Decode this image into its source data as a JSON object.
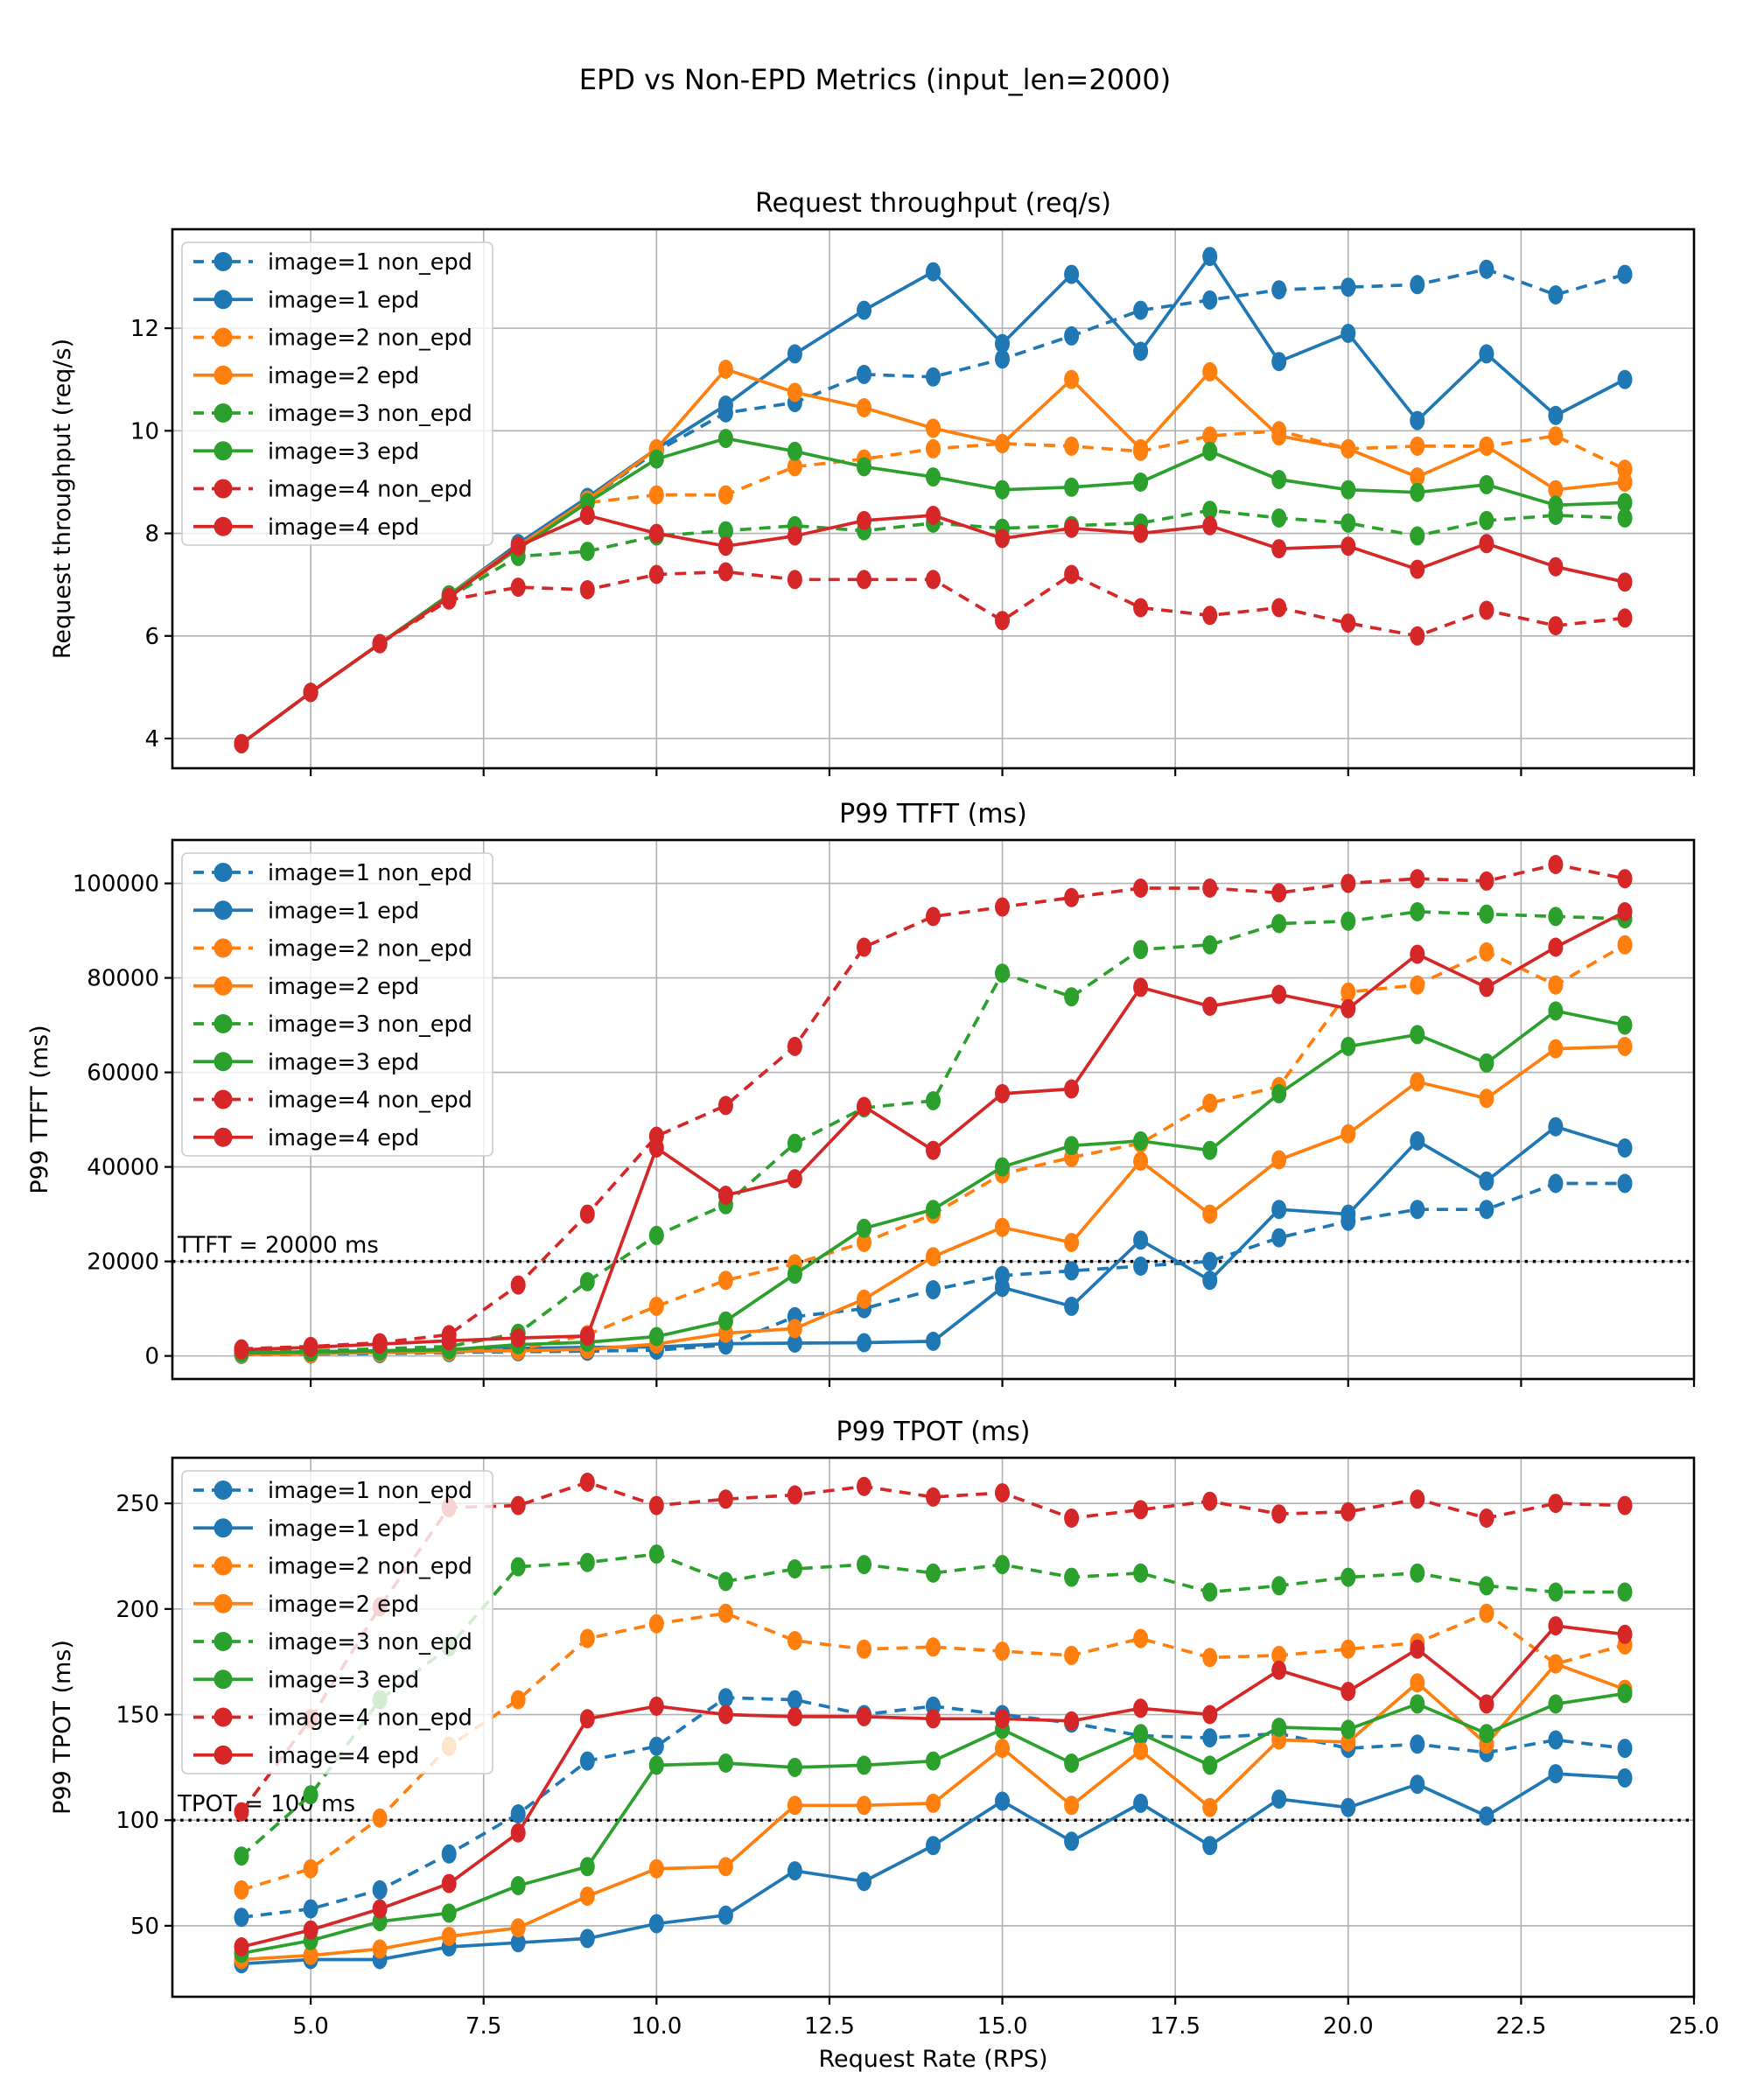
{
  "title": "EPD vs Non-EPD Metrics (input_len=2000)",
  "xlabel": "Request Rate (RPS)",
  "x_tick_labels": [
    "5.0",
    "7.5",
    "10.0",
    "12.5",
    "15.0",
    "17.5",
    "20.0",
    "22.5",
    "25.0"
  ],
  "legend_labels": [
    "image=1 non_epd",
    "image=1 epd",
    "image=2 non_epd",
    "image=2 epd",
    "image=3 non_epd",
    "image=3 epd",
    "image=4 non_epd",
    "image=4 epd"
  ],
  "colors": {
    "blue": "#1f77b4",
    "orange": "#ff7f0e",
    "green": "#2ca02c",
    "red": "#d62728",
    "grid": "#b0b0b0",
    "spine": "#000000",
    "threshold": "#000000"
  },
  "chart_data": [
    {
      "type": "line",
      "title": "Request throughput (req/s)",
      "ylabel": "Request throughput (req/s)",
      "x": [
        4,
        5,
        6,
        7,
        8,
        9,
        10,
        11,
        12,
        13,
        14,
        15,
        16,
        17,
        18,
        19,
        20,
        21,
        22,
        23,
        24
      ],
      "xlim": [
        3,
        25
      ],
      "ylim": [
        3.42,
        13.93
      ],
      "yticks": [
        4,
        6,
        8,
        10,
        12
      ],
      "ytick_labels": [
        "4",
        "6",
        "8",
        "10",
        "12"
      ],
      "grid": true,
      "legend_position": "upper-left",
      "series": [
        {
          "name": "image=1 non_epd",
          "color": "blue",
          "style": "dashed",
          "values": [
            3.9,
            4.9,
            5.85,
            6.8,
            7.75,
            8.65,
            9.6,
            10.35,
            10.55,
            11.1,
            11.05,
            11.4,
            11.85,
            12.35,
            12.55,
            12.75,
            12.8,
            12.85,
            13.15,
            12.65,
            13.05
          ]
        },
        {
          "name": "image=1 epd",
          "color": "blue",
          "style": "solid",
          "values": [
            3.9,
            4.9,
            5.85,
            6.8,
            7.8,
            8.7,
            9.65,
            10.5,
            11.5,
            12.35,
            13.1,
            11.7,
            13.05,
            11.55,
            13.4,
            11.35,
            11.9,
            10.2,
            11.5,
            10.3,
            11.0
          ]
        },
        {
          "name": "image=2 non_epd",
          "color": "orange",
          "style": "dashed",
          "values": [
            3.9,
            4.9,
            5.85,
            6.75,
            7.7,
            8.6,
            8.75,
            8.75,
            9.3,
            9.45,
            9.65,
            9.75,
            9.7,
            9.6,
            9.9,
            10.0,
            9.65,
            9.7,
            9.7,
            9.9,
            9.25
          ]
        },
        {
          "name": "image=2 epd",
          "color": "orange",
          "style": "solid",
          "values": [
            3.9,
            4.9,
            5.85,
            6.8,
            7.75,
            8.65,
            9.65,
            11.2,
            10.75,
            10.45,
            10.05,
            9.75,
            11.0,
            9.65,
            11.15,
            9.9,
            9.65,
            9.1,
            9.7,
            8.85,
            9.0
          ]
        },
        {
          "name": "image=3 non_epd",
          "color": "green",
          "style": "dashed",
          "values": [
            3.9,
            4.9,
            5.85,
            6.75,
            7.55,
            7.65,
            7.95,
            8.05,
            8.15,
            8.05,
            8.2,
            8.1,
            8.15,
            8.2,
            8.45,
            8.3,
            8.2,
            7.95,
            8.25,
            8.35,
            8.3
          ]
        },
        {
          "name": "image=3 epd",
          "color": "green",
          "style": "solid",
          "values": [
            3.9,
            4.9,
            5.85,
            6.8,
            7.7,
            8.6,
            9.45,
            9.85,
            9.6,
            9.3,
            9.1,
            8.85,
            8.9,
            9.0,
            9.6,
            9.05,
            8.85,
            8.8,
            8.95,
            8.55,
            8.6
          ]
        },
        {
          "name": "image=4 non_epd",
          "color": "red",
          "style": "dashed",
          "values": [
            3.9,
            4.9,
            5.85,
            6.7,
            6.95,
            6.9,
            7.2,
            7.25,
            7.1,
            7.1,
            7.1,
            6.3,
            7.2,
            6.55,
            6.4,
            6.55,
            6.25,
            6.0,
            6.5,
            6.2,
            6.35
          ]
        },
        {
          "name": "image=4 epd",
          "color": "red",
          "style": "solid",
          "values": [
            3.9,
            4.9,
            5.85,
            6.75,
            7.75,
            8.35,
            8.0,
            7.75,
            7.95,
            8.25,
            8.35,
            7.9,
            8.1,
            8.0,
            8.15,
            7.7,
            7.75,
            7.3,
            7.8,
            7.35,
            7.05
          ]
        }
      ]
    },
    {
      "type": "line",
      "title": "P99 TTFT (ms)",
      "ylabel": "P99 TTFT (ms)",
      "x": [
        4,
        5,
        6,
        7,
        8,
        9,
        10,
        11,
        12,
        13,
        14,
        15,
        16,
        17,
        18,
        19,
        20,
        21,
        22,
        23,
        24
      ],
      "xlim": [
        3,
        25
      ],
      "ylim": [
        -4885,
        109185
      ],
      "yticks": [
        0,
        20000,
        40000,
        60000,
        80000,
        100000
      ],
      "ytick_labels": [
        "0",
        "20000",
        "40000",
        "60000",
        "80000",
        "100000"
      ],
      "grid": true,
      "legend_position": "upper-left",
      "threshold": {
        "value": 20000,
        "label": "TTFT = 20000 ms"
      },
      "series": [
        {
          "name": "image=1 non_epd",
          "color": "blue",
          "style": "dashed",
          "values": [
            300,
            400,
            500,
            700,
            900,
            1000,
            1200,
            2300,
            8300,
            10000,
            14000,
            17000,
            18000,
            19000,
            20000,
            25000,
            28500,
            31000,
            31000,
            36500,
            36500
          ]
        },
        {
          "name": "image=1 epd",
          "color": "blue",
          "style": "solid",
          "values": [
            700,
            900,
            1100,
            1400,
            1600,
            1800,
            1900,
            2600,
            2700,
            2800,
            3100,
            14500,
            10500,
            24500,
            16000,
            31000,
            30000,
            45500,
            37000,
            48500,
            44000
          ]
        },
        {
          "name": "image=2 non_epd",
          "color": "orange",
          "style": "dashed",
          "values": [
            500,
            700,
            900,
            1100,
            1300,
            4500,
            10500,
            16000,
            19500,
            24000,
            30000,
            38500,
            42000,
            45000,
            53500,
            57000,
            77000,
            78500,
            85500,
            78500,
            87000
          ]
        },
        {
          "name": "image=2 epd",
          "color": "orange",
          "style": "solid",
          "values": [
            400,
            500,
            700,
            900,
            1100,
            1400,
            2500,
            4800,
            5800,
            12000,
            21000,
            27200,
            24000,
            41200,
            30000,
            41500,
            47000,
            58000,
            54500,
            65000,
            65500
          ]
        },
        {
          "name": "image=3 non_epd",
          "color": "green",
          "style": "dashed",
          "values": [
            800,
            1100,
            1500,
            2000,
            4800,
            15700,
            25500,
            32000,
            45000,
            52500,
            54000,
            81000,
            76000,
            86000,
            87000,
            91500,
            92000,
            94000,
            93500,
            93000,
            92500
          ]
        },
        {
          "name": "image=3 epd",
          "color": "green",
          "style": "solid",
          "values": [
            600,
            800,
            1000,
            1300,
            2400,
            2900,
            4100,
            7400,
            17300,
            27000,
            31000,
            40000,
            44500,
            45500,
            43500,
            55500,
            65500,
            68000,
            62000,
            73000,
            70000
          ]
        },
        {
          "name": "image=4 non_epd",
          "color": "red",
          "style": "dashed",
          "values": [
            1500,
            2000,
            2800,
            4500,
            15000,
            30000,
            46500,
            53000,
            65500,
            86500,
            93000,
            95000,
            97000,
            99000,
            99000,
            98000,
            100000,
            101000,
            100500,
            104000,
            101000
          ]
        },
        {
          "name": "image=4 epd",
          "color": "red",
          "style": "solid",
          "values": [
            1300,
            1800,
            2500,
            3200,
            3800,
            4200,
            44000,
            34000,
            37500,
            52800,
            43500,
            55500,
            56500,
            78000,
            74000,
            76500,
            73500,
            85000,
            78000,
            86500,
            94000
          ]
        }
      ]
    },
    {
      "type": "line",
      "title": "P99 TPOT (ms)",
      "ylabel": "P99 TPOT (ms)",
      "x": [
        4,
        5,
        6,
        7,
        8,
        9,
        10,
        11,
        12,
        13,
        14,
        15,
        16,
        17,
        18,
        19,
        20,
        21,
        22,
        23,
        24
      ],
      "xlim": [
        3,
        25
      ],
      "ylim": [
        16.4,
        271.6
      ],
      "yticks": [
        50,
        100,
        150,
        200,
        250
      ],
      "ytick_labels": [
        "50",
        "100",
        "150",
        "200",
        "250"
      ],
      "grid": true,
      "legend_position": "upper-left",
      "threshold": {
        "value": 100,
        "label": "TPOT = 100 ms"
      },
      "series": [
        {
          "name": "image=1 non_epd",
          "color": "blue",
          "style": "dashed",
          "values": [
            54,
            58,
            67,
            84,
            103,
            128,
            135,
            158,
            157,
            150,
            154,
            150,
            146,
            140,
            139,
            141,
            134,
            136,
            132,
            138,
            134
          ]
        },
        {
          "name": "image=1 epd",
          "color": "blue",
          "style": "solid",
          "values": [
            32,
            34,
            34,
            40,
            42,
            44,
            51,
            55,
            76,
            71,
            88,
            109,
            90,
            108,
            88,
            110,
            106,
            117,
            102,
            122,
            120
          ]
        },
        {
          "name": "image=2 non_epd",
          "color": "orange",
          "style": "dashed",
          "values": [
            67,
            77,
            101,
            135,
            157,
            186,
            193,
            198,
            185,
            181,
            182,
            180,
            178,
            186,
            177,
            178,
            181,
            184,
            198,
            174,
            183
          ]
        },
        {
          "name": "image=2 epd",
          "color": "orange",
          "style": "solid",
          "values": [
            34,
            36,
            39,
            45,
            49,
            64,
            77,
            78,
            107,
            107,
            108,
            134,
            107,
            133,
            106,
            138,
            137,
            165,
            136,
            174,
            162
          ]
        },
        {
          "name": "image=3 non_epd",
          "color": "green",
          "style": "dashed",
          "values": [
            83,
            112,
            157,
            182,
            220,
            222,
            226,
            213,
            219,
            221,
            217,
            221,
            215,
            217,
            208,
            211,
            215,
            217,
            211,
            208,
            208
          ]
        },
        {
          "name": "image=3 epd",
          "color": "green",
          "style": "solid",
          "values": [
            37,
            43,
            52,
            56,
            69,
            78,
            126,
            127,
            125,
            126,
            128,
            143,
            127,
            141,
            126,
            144,
            143,
            155,
            141,
            155,
            160
          ]
        },
        {
          "name": "image=4 non_epd",
          "color": "red",
          "style": "dashed",
          "values": [
            104,
            148,
            201,
            248,
            249,
            260,
            249,
            252,
            254,
            258,
            253,
            255,
            243,
            247,
            251,
            245,
            246,
            252,
            243,
            250,
            249
          ]
        },
        {
          "name": "image=4 epd",
          "color": "red",
          "style": "solid",
          "values": [
            40,
            48,
            58,
            70,
            94,
            148,
            154,
            150,
            149,
            149,
            148,
            148,
            147,
            153,
            150,
            171,
            161,
            181,
            155,
            192,
            188
          ]
        }
      ]
    }
  ]
}
